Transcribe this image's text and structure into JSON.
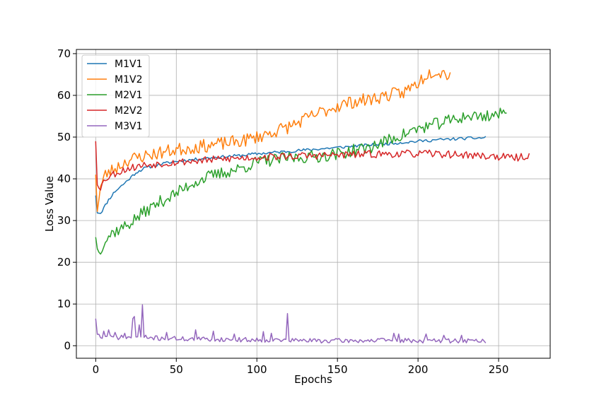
{
  "chart_data": {
    "type": "line",
    "title": "",
    "xlabel": "Epochs",
    "ylabel": "Loss Value",
    "xlim": [
      -12,
      282
    ],
    "ylim": [
      -3,
      71
    ],
    "xticks": [
      0,
      50,
      100,
      150,
      200,
      250
    ],
    "yticks": [
      0,
      10,
      20,
      30,
      40,
      50,
      60,
      70
    ],
    "grid": true,
    "legend": "upper-left",
    "series": [
      {
        "name": "M1V1",
        "color": "#1f77b4",
        "last_epoch": 242,
        "anchors": [
          [
            0,
            36
          ],
          [
            1,
            32
          ],
          [
            3,
            31.8
          ],
          [
            5,
            33
          ],
          [
            8,
            35
          ],
          [
            12,
            37
          ],
          [
            18,
            39
          ],
          [
            25,
            41.5
          ],
          [
            30,
            42.5
          ],
          [
            40,
            43.5
          ],
          [
            50,
            44.2
          ],
          [
            60,
            44.6
          ],
          [
            70,
            45
          ],
          [
            80,
            45.3
          ],
          [
            90,
            45.6
          ],
          [
            100,
            46
          ],
          [
            110,
            46.3
          ],
          [
            120,
            46.6
          ],
          [
            130,
            46.9
          ],
          [
            140,
            47.2
          ],
          [
            150,
            47.5
          ],
          [
            160,
            47.8
          ],
          [
            170,
            48.1
          ],
          [
            180,
            48.4
          ],
          [
            190,
            48.7
          ],
          [
            200,
            49
          ],
          [
            210,
            49.3
          ],
          [
            220,
            49.5
          ],
          [
            230,
            49.7
          ],
          [
            240,
            49.8
          ],
          [
            242,
            50
          ]
        ],
        "noise": 0.35,
        "seed": 11
      },
      {
        "name": "M1V2",
        "color": "#ff7f0e",
        "last_epoch": 220,
        "anchors": [
          [
            0,
            41
          ],
          [
            1,
            33
          ],
          [
            3,
            38
          ],
          [
            6,
            41
          ],
          [
            10,
            42
          ],
          [
            20,
            44.5
          ],
          [
            30,
            45.5
          ],
          [
            50,
            47
          ],
          [
            70,
            48
          ],
          [
            90,
            49
          ],
          [
            100,
            50
          ],
          [
            120,
            52.5
          ],
          [
            140,
            56
          ],
          [
            150,
            57.5
          ],
          [
            160,
            58.5
          ],
          [
            170,
            59
          ],
          [
            180,
            60
          ],
          [
            190,
            60.5
          ],
          [
            200,
            63
          ],
          [
            205,
            65
          ],
          [
            210,
            66
          ],
          [
            220,
            65
          ]
        ],
        "noise": 1.6,
        "seed": 23
      },
      {
        "name": "M2V1",
        "color": "#2ca02c",
        "last_epoch": 255,
        "anchors": [
          [
            0,
            26
          ],
          [
            2,
            22
          ],
          [
            5,
            25
          ],
          [
            10,
            27
          ],
          [
            20,
            29
          ],
          [
            30,
            32
          ],
          [
            40,
            34.5
          ],
          [
            50,
            36.5
          ],
          [
            60,
            39
          ],
          [
            70,
            40.5
          ],
          [
            80,
            41.5
          ],
          [
            90,
            42.5
          ],
          [
            100,
            44
          ],
          [
            110,
            44.5
          ],
          [
            120,
            45
          ],
          [
            130,
            45.2
          ],
          [
            140,
            45.5
          ],
          [
            150,
            46
          ],
          [
            160,
            46.8
          ],
          [
            170,
            47.5
          ],
          [
            180,
            49
          ],
          [
            190,
            50.5
          ],
          [
            200,
            52
          ],
          [
            210,
            53
          ],
          [
            220,
            54
          ],
          [
            230,
            55
          ],
          [
            240,
            55
          ],
          [
            250,
            55.5
          ],
          [
            255,
            55.5
          ]
        ],
        "noise": 1.5,
        "seed": 37
      },
      {
        "name": "M2V2",
        "color": "#d62728",
        "last_epoch": 269,
        "anchors": [
          [
            0,
            49
          ],
          [
            1,
            39
          ],
          [
            3,
            38
          ],
          [
            6,
            40
          ],
          [
            10,
            41
          ],
          [
            20,
            42.5
          ],
          [
            30,
            43.3
          ],
          [
            50,
            44
          ],
          [
            70,
            44.5
          ],
          [
            90,
            45
          ],
          [
            110,
            45.3
          ],
          [
            130,
            45.5
          ],
          [
            150,
            45.7
          ],
          [
            170,
            45.9
          ],
          [
            190,
            46
          ],
          [
            210,
            46
          ],
          [
            230,
            45.7
          ],
          [
            250,
            45.3
          ],
          [
            260,
            45
          ],
          [
            269,
            45.5
          ]
        ],
        "noise": 0.9,
        "seed": 53
      },
      {
        "name": "M3V1",
        "color": "#9467bd",
        "last_epoch": 242,
        "anchors": [
          [
            0,
            6.5
          ],
          [
            1,
            3
          ],
          [
            3,
            2
          ],
          [
            10,
            2
          ],
          [
            20,
            2
          ],
          [
            30,
            2
          ],
          [
            40,
            1.8
          ],
          [
            60,
            1.6
          ],
          [
            80,
            1.5
          ],
          [
            100,
            1.4
          ],
          [
            120,
            1.3
          ],
          [
            140,
            1.2
          ],
          [
            160,
            1.2
          ],
          [
            180,
            1.3
          ],
          [
            200,
            1.2
          ],
          [
            220,
            1.2
          ],
          [
            242,
            1.2
          ]
        ],
        "noise": 0.55,
        "seed": 71,
        "spikes": [
          [
            5,
            3.5
          ],
          [
            8,
            3.8
          ],
          [
            12,
            3.2
          ],
          [
            18,
            3
          ],
          [
            23,
            6.5
          ],
          [
            24,
            7
          ],
          [
            27,
            5
          ],
          [
            29,
            9.8
          ],
          [
            44,
            3.2
          ],
          [
            62,
            3.8
          ],
          [
            73,
            3.5
          ],
          [
            86,
            2.8
          ],
          [
            104,
            3.4
          ],
          [
            109,
            3
          ],
          [
            119,
            7.7
          ],
          [
            185,
            3
          ],
          [
            188,
            2.8
          ],
          [
            205,
            2.8
          ],
          [
            216,
            2.5
          ],
          [
            227,
            2.5
          ]
        ]
      }
    ]
  }
}
